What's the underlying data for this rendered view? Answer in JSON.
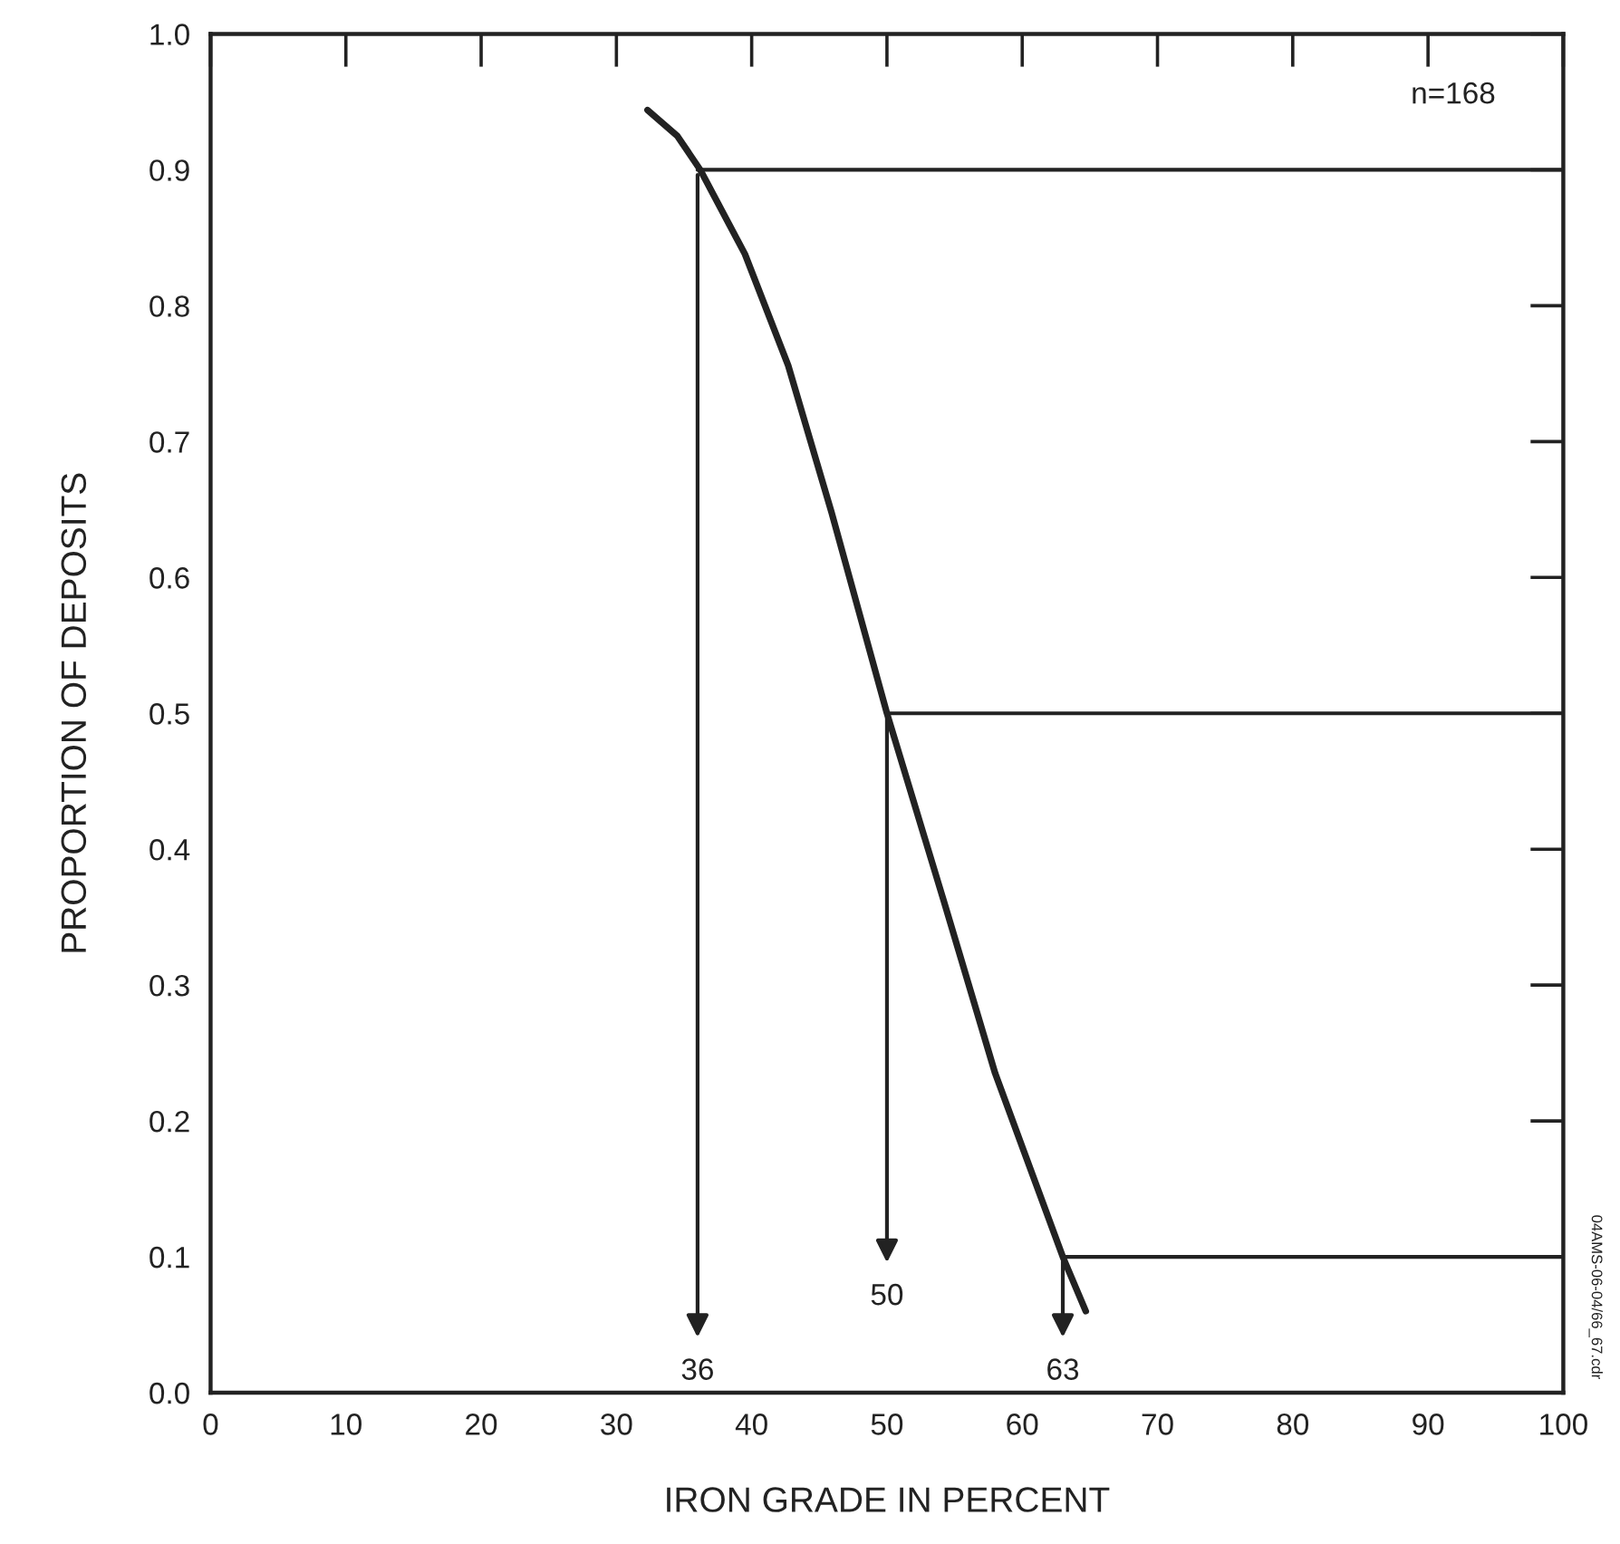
{
  "chart_data": {
    "type": "line",
    "xlabel": "IRON GRADE IN PERCENT",
    "ylabel": "PROPORTION OF DEPOSITS",
    "x": [
      32.3,
      34.5,
      36.2,
      39.5,
      42.7,
      45.9,
      50.0,
      54.2,
      58.0,
      63.0,
      64.7
    ],
    "series": [
      {
        "color": "#222222",
        "values": [
          0.944,
          0.925,
          0.9,
          0.838,
          0.756,
          0.648,
          0.5,
          0.362,
          0.235,
          0.1,
          0.06
        ]
      },
      {
        "color": "#222222",
        "x": [
          36,
          100
        ],
        "values": [
          0.9,
          0.9
        ]
      },
      {
        "color": "#222222",
        "x": [
          50,
          100
        ],
        "values": [
          0.5,
          0.5
        ]
      },
      {
        "color": "#222222",
        "x": [
          63,
          100
        ],
        "values": [
          0.1,
          0.1
        ]
      }
    ],
    "xlim": [
      0,
      100
    ],
    "ylim": [
      0,
      1.0
    ],
    "xticks": [
      0,
      10,
      20,
      30,
      40,
      50,
      60,
      70,
      80,
      90,
      100
    ],
    "yticks": [
      {
        "value": 0,
        "label": "0.0"
      },
      {
        "value": 0.1,
        "label": "0.1"
      },
      {
        "value": 0.2,
        "label": "0.2"
      },
      {
        "value": 0.3,
        "label": "0.3"
      },
      {
        "value": 0.4,
        "label": "0.4"
      },
      {
        "value": 0.5,
        "label": "0.5"
      },
      {
        "value": 0.6,
        "label": "0.6"
      },
      {
        "value": 0.7,
        "label": "0.7"
      },
      {
        "value": 0.8,
        "label": "0.8"
      },
      {
        "value": 0.9,
        "label": "0.9"
      },
      {
        "value": 1.0,
        "label": "1.0"
      }
    ],
    "grid": false,
    "legend": false,
    "marker": "none",
    "line_style": "solid",
    "annotations": [
      {
        "text": "36",
        "x": 36,
        "y": 0.9
      },
      {
        "text": "50",
        "x": 50,
        "y": 0.5
      },
      {
        "text": "63",
        "x": 63,
        "y": 0.1
      },
      "n=168",
      "04AMS-06-04/66_67.cdr"
    ]
  }
}
